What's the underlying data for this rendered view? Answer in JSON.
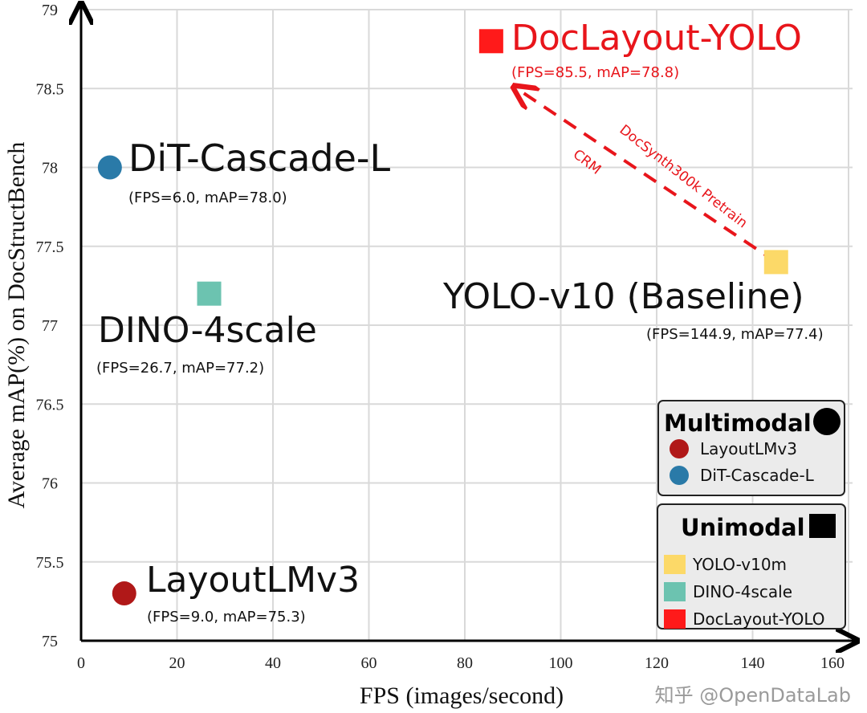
{
  "chart_data": {
    "type": "scatter",
    "xlabel": "FPS (images/second)",
    "ylabel": "Average mAP(%) on DocStructBench",
    "xlim": [
      0,
      160
    ],
    "ylim": [
      75,
      79
    ],
    "xticks": [
      "0",
      "20",
      "40",
      "60",
      "80",
      "100",
      "120",
      "140",
      "160"
    ],
    "yticks": [
      "75",
      "75.5",
      "76",
      "76.5",
      "77",
      "77.5",
      "78",
      "78.5",
      "79"
    ],
    "grid": true,
    "points": [
      {
        "name": "DocLayout-YOLO",
        "label": "DocLayout-YOLO",
        "sublabel": "(FPS=85.5, mAP=78.8)",
        "x": 85.5,
        "y": 78.8,
        "marker": "square",
        "color": "#ff1a1a",
        "text_color": "#e8151b"
      },
      {
        "name": "DiT-Cascade-L",
        "label": "DiT-Cascade-L",
        "sublabel": "(FPS=6.0, mAP=78.0)",
        "x": 6.0,
        "y": 78.0,
        "marker": "circle",
        "color": "#2a7aa8",
        "text_color": "#111111"
      },
      {
        "name": "DINO-4scale",
        "label": "DINO-4scale",
        "sublabel": "(FPS=26.7, mAP=77.2)",
        "x": 26.7,
        "y": 77.2,
        "marker": "square",
        "color": "#6cc3b0",
        "text_color": "#111111"
      },
      {
        "name": "YOLO-v10m",
        "label": "YOLO-v10 (Baseline)",
        "sublabel": "(FPS=144.9, mAP=77.4)",
        "x": 144.9,
        "y": 77.4,
        "marker": "square",
        "color": "#fcd968",
        "text_color": "#111111"
      },
      {
        "name": "LayoutLMv3",
        "label": "LayoutLMv3",
        "sublabel": "(FPS=9.0, mAP=75.3)",
        "x": 9.0,
        "y": 75.3,
        "marker": "circle",
        "color": "#b01818",
        "text_color": "#111111"
      }
    ],
    "annotations": {
      "arrow": {
        "from": [
          144.9,
          77.4
        ],
        "to": [
          91,
          78.5
        ],
        "color": "#e8151b",
        "style": "dashed"
      },
      "arrow_text_1": "DocSynth300k Pretrain",
      "arrow_text_2": "CRM"
    },
    "legend": {
      "placement": "bottom-right",
      "groups": [
        {
          "title": "Multimodal",
          "marker": "circle",
          "items": [
            {
              "label": "LayoutLMv3",
              "color": "#b01818"
            },
            {
              "label": "DiT-Cascade-L",
              "color": "#2a7aa8"
            }
          ]
        },
        {
          "title": "Unimodal",
          "marker": "square",
          "items": [
            {
              "label": "YOLO-v10m",
              "color": "#fcd968"
            },
            {
              "label": "DINO-4scale",
              "color": "#6cc3b0"
            },
            {
              "label": "DocLayout-YOLO",
              "color": "#ff1a1a"
            }
          ]
        }
      ]
    }
  },
  "watermark": "知乎 @OpenDataLab"
}
